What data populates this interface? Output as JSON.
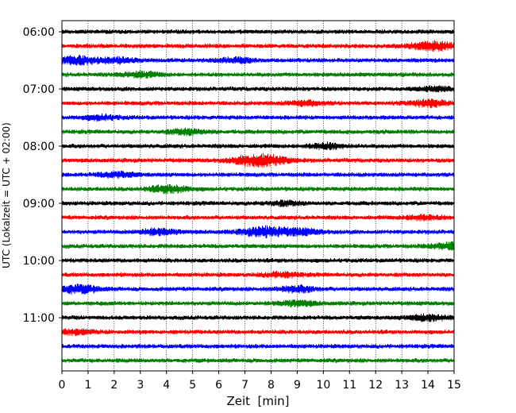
{
  "chart_data": {
    "type": "line",
    "title": "",
    "xlabel": "Zeit  [min]",
    "ylabel": "UTC (Lokalzeit = UTC + 02:00)",
    "xlim": [
      0,
      15
    ],
    "x_ticks": [
      "0",
      "1",
      "2",
      "3",
      "4",
      "5",
      "6",
      "7",
      "8",
      "9",
      "10",
      "11",
      "12",
      "13",
      "14",
      "15"
    ],
    "y_tick_labels": [
      "06:00",
      "07:00",
      "08:00",
      "09:00",
      "10:00",
      "11:00"
    ],
    "grid": "vertical dotted lines at each minute",
    "trace_interval_minutes": 15,
    "trace_colors": [
      "#000000",
      "#ff0000",
      "#0000ff",
      "#008000"
    ],
    "traces": [
      {
        "start": "06:00",
        "color": "#000000"
      },
      {
        "start": "06:15",
        "color": "#ff0000",
        "bursts": [
          {
            "at_min": 14.2,
            "strength": 1.6
          }
        ]
      },
      {
        "start": "06:30",
        "color": "#0000ff",
        "bursts": [
          {
            "at_min": 0.6,
            "strength": 1.4
          },
          {
            "at_min": 2.2,
            "strength": 0.9
          },
          {
            "at_min": 6.7,
            "strength": 0.8
          }
        ]
      },
      {
        "start": "06:45",
        "color": "#008000",
        "bursts": [
          {
            "at_min": 3.0,
            "strength": 0.9
          }
        ]
      },
      {
        "start": "07:00",
        "color": "#000000",
        "bursts": [
          {
            "at_min": 14.3,
            "strength": 0.7
          }
        ]
      },
      {
        "start": "07:15",
        "color": "#ff0000",
        "bursts": [
          {
            "at_min": 9.3,
            "strength": 0.8
          },
          {
            "at_min": 14.0,
            "strength": 1.1
          }
        ]
      },
      {
        "start": "07:30",
        "color": "#0000ff",
        "bursts": [
          {
            "at_min": 1.5,
            "strength": 0.8
          }
        ]
      },
      {
        "start": "07:45",
        "color": "#008000",
        "bursts": [
          {
            "at_min": 4.8,
            "strength": 0.9
          }
        ]
      },
      {
        "start": "08:00",
        "color": "#000000",
        "bursts": [
          {
            "at_min": 10.1,
            "strength": 0.9
          }
        ]
      },
      {
        "start": "08:15",
        "color": "#ff0000",
        "bursts": [
          {
            "at_min": 7.6,
            "strength": 2.2
          }
        ]
      },
      {
        "start": "08:30",
        "color": "#0000ff",
        "bursts": [
          {
            "at_min": 2.1,
            "strength": 0.9
          }
        ]
      },
      {
        "start": "08:45",
        "color": "#008000",
        "bursts": [
          {
            "at_min": 4.1,
            "strength": 1.2
          }
        ]
      },
      {
        "start": "09:00",
        "color": "#000000",
        "bursts": [
          {
            "at_min": 8.5,
            "strength": 0.7
          }
        ]
      },
      {
        "start": "09:15",
        "color": "#ff0000",
        "bursts": [
          {
            "at_min": 13.8,
            "strength": 0.8
          }
        ]
      },
      {
        "start": "09:30",
        "color": "#0000ff",
        "bursts": [
          {
            "at_min": 3.7,
            "strength": 1.0
          },
          {
            "at_min": 7.8,
            "strength": 1.8
          },
          {
            "at_min": 9.2,
            "strength": 0.9
          }
        ]
      },
      {
        "start": "09:45",
        "color": "#008000",
        "bursts": [
          {
            "at_min": 14.9,
            "strength": 1.2
          }
        ]
      },
      {
        "start": "10:00",
        "color": "#000000"
      },
      {
        "start": "10:15",
        "color": "#ff0000",
        "bursts": [
          {
            "at_min": 8.4,
            "strength": 0.8
          }
        ]
      },
      {
        "start": "10:30",
        "color": "#0000ff",
        "bursts": [
          {
            "at_min": 0.6,
            "strength": 1.4
          },
          {
            "at_min": 9.0,
            "strength": 1.0
          }
        ]
      },
      {
        "start": "10:45",
        "color": "#008000",
        "bursts": [
          {
            "at_min": 9.0,
            "strength": 0.9
          }
        ]
      },
      {
        "start": "11:00",
        "color": "#000000",
        "bursts": [
          {
            "at_min": 14.0,
            "strength": 1.1
          }
        ]
      },
      {
        "start": "11:15",
        "color": "#ff0000",
        "bursts": [
          {
            "at_min": 0.5,
            "strength": 0.8
          }
        ]
      },
      {
        "start": "11:30",
        "color": "#0000ff"
      },
      {
        "start": "11:45",
        "color": "#008000"
      }
    ]
  }
}
